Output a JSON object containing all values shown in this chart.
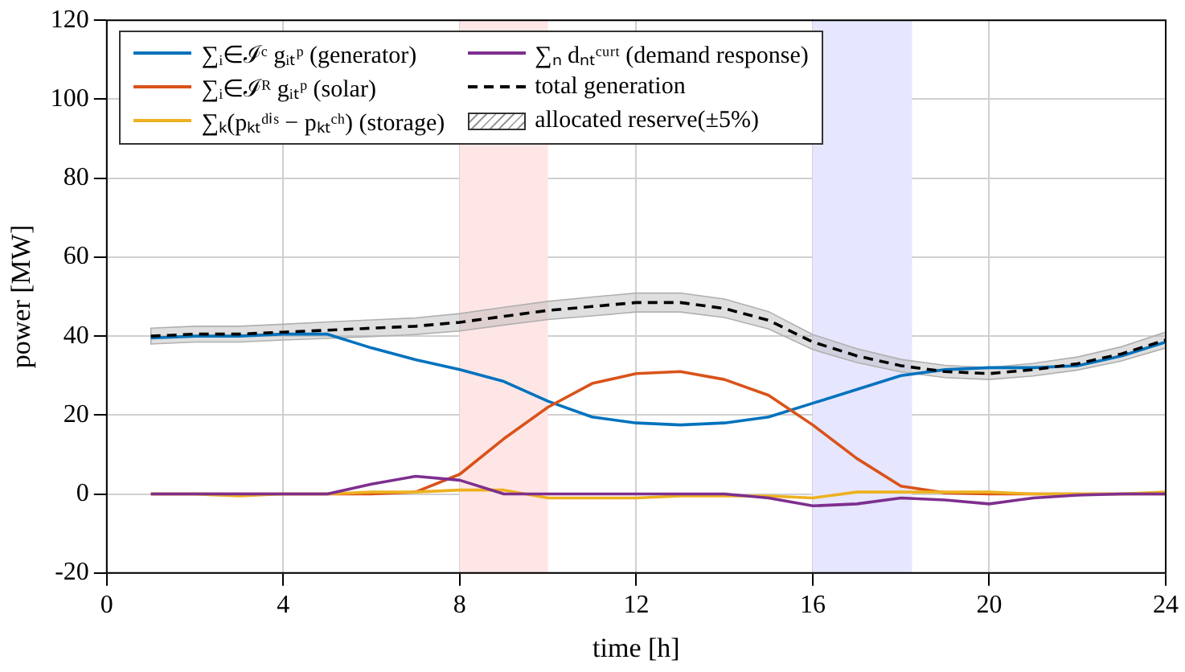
{
  "chart_data": {
    "type": "line",
    "xlabel": "time [h]",
    "ylabel": "power [MW]",
    "x": [
      1,
      2,
      3,
      4,
      5,
      6,
      7,
      8,
      9,
      10,
      11,
      12,
      13,
      14,
      15,
      16,
      17,
      18,
      19,
      20,
      21,
      22,
      23,
      24
    ],
    "xlim": [
      0,
      24
    ],
    "xticks": [
      0,
      4,
      8,
      12,
      16,
      20,
      24
    ],
    "ylim": [
      -20,
      120
    ],
    "yticks": [
      -20,
      0,
      20,
      40,
      60,
      80,
      100,
      120
    ],
    "grid": true,
    "legend": "top left",
    "marker": "none",
    "bands": [
      {
        "axis": "x",
        "from": 8,
        "to": 10,
        "color": "#ffe6e6"
      },
      {
        "axis": "x",
        "from": 16,
        "to": 18.25,
        "color": "#e6e6ff"
      }
    ],
    "series": [
      {
        "name": "∑ᵢ∈ℐᶜ gᵢₜᵖ (generator)",
        "color": "#0072bd",
        "values": [
          39.5,
          40,
          40,
          40.5,
          40.5,
          37,
          34,
          31.5,
          28.5,
          23.5,
          19.5,
          18,
          17.5,
          18,
          19.5,
          23,
          26.5,
          30,
          31.5,
          32,
          32,
          32.5,
          35,
          38.5
        ]
      },
      {
        "name": "∑ᵢ∈ℐᴿ gᵢₜᵖ (solar)",
        "color": "#d95319",
        "values": [
          0,
          0,
          0,
          0,
          0,
          0,
          0.5,
          5,
          14,
          22,
          28,
          30.5,
          31,
          29,
          25,
          17.5,
          9,
          2,
          0.3,
          0,
          0,
          0,
          0,
          0
        ]
      },
      {
        "name": "∑ₖ(pₖₜᵈⁱˢ − pₖₜᶜʰ) (storage)",
        "color": "#edb120",
        "values": [
          0,
          0,
          -0.5,
          0,
          0,
          0.5,
          0.5,
          1,
          1,
          -1,
          -1,
          -1,
          -0.5,
          -0.5,
          -0.5,
          -1,
          0.5,
          0.5,
          0.5,
          0.5,
          0,
          0,
          0,
          0.5
        ]
      },
      {
        "name": "∑ₙ dₙₜᶜᵘʳᵗ (demand response)",
        "color": "#7e2f8e",
        "values": [
          0,
          0,
          0,
          0,
          0,
          2.5,
          4.5,
          3.5,
          0,
          0,
          0,
          0,
          0,
          0,
          -1,
          -3,
          -2.5,
          -1,
          -1.5,
          -2.5,
          -1,
          -0.3,
          0,
          0
        ]
      },
      {
        "name": "total generation",
        "color": "#000000",
        "line_style": "dashed",
        "values": [
          40,
          40.5,
          40.5,
          41,
          41.5,
          42,
          42.5,
          43.5,
          45,
          46.5,
          47.5,
          48.5,
          48.5,
          47,
          44,
          38.5,
          35,
          32.5,
          31,
          30.5,
          31.5,
          33,
          35.5,
          39
        ],
        "upper": [
          42,
          42.5,
          42.5,
          43,
          43.6,
          44.1,
          44.6,
          45.7,
          47.3,
          48.8,
          49.9,
          50.9,
          50.9,
          49.4,
          46.2,
          40.4,
          36.8,
          34.1,
          32.6,
          32,
          33.1,
          34.7,
          37.3,
          41
        ],
        "lower": [
          38,
          38.5,
          38.5,
          39,
          39.4,
          39.9,
          40.4,
          41.3,
          42.8,
          44.2,
          45.1,
          46.1,
          46.1,
          44.7,
          41.8,
          36.6,
          33.3,
          30.9,
          29.5,
          29,
          29.9,
          31.4,
          33.7,
          37
        ]
      }
    ],
    "annotations": [
      "allocated reserve(±5%)"
    ]
  }
}
